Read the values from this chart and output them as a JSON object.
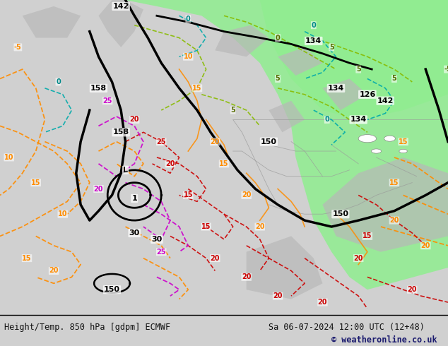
{
  "title_left": "Height/Temp. 850 hPa [gdpm] ECMWF",
  "title_right": "Sa 06-07-2024 12:00 UTC (12+48)",
  "copyright": "© weatheronline.co.uk",
  "bg_color": "#d8d8d8",
  "map_bg": "#e8e8e8",
  "land_color": "#c8c8c8",
  "green_fill": "#90ee90",
  "figsize": [
    6.34,
    4.9
  ],
  "dpi": 100,
  "bottom_text_color": "#1a1a6e",
  "font_size_bottom": 9
}
